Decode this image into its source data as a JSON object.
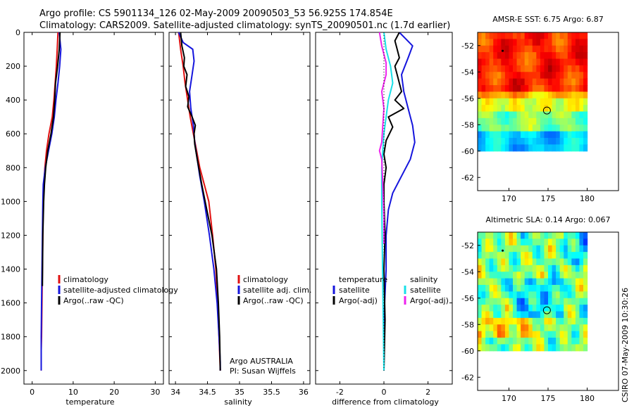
{
  "header": {
    "line1": "Argo profile: CS 5901134_126 02-May-2009 20090503_53 56.925S 174.854E",
    "line2": "Climatology: CARS2009. Satellite-adjusted climatology: synTS_20090501.nc (1.7d earlier)"
  },
  "side_label": "CSIRO 07-May-2009 10:30:26",
  "colors": {
    "red": "#e01010",
    "blue": "#1515dd",
    "black": "#000000",
    "cyan": "#18e0e8",
    "magenta": "#ee22ee"
  },
  "chart_data": [
    {
      "type": "line",
      "name": "temperature",
      "xlabel": "temperature",
      "xlim": [
        -2,
        32
      ],
      "ylim": [
        2080,
        0
      ],
      "xticks": [
        "0",
        "10",
        "20",
        "30"
      ],
      "xtickvals": [
        0,
        10,
        20,
        30
      ],
      "yticks": [
        "0",
        "200",
        "400",
        "600",
        "800",
        "1000",
        "1200",
        "1400",
        "1600",
        "1800",
        "2000"
      ],
      "ytickvals": [
        0,
        200,
        400,
        600,
        800,
        1000,
        1200,
        1400,
        1600,
        1800,
        2000
      ],
      "legend": [
        "climatology",
        "satellite-adjusted climatology",
        "Argo(..raw -QC)"
      ],
      "series": [
        {
          "name": "climatology",
          "color": "red",
          "x": [
            6.3,
            6.1,
            5.9,
            5.6,
            5.3,
            4.9,
            4.1,
            3.5,
            3.1,
            2.9,
            2.7,
            2.6,
            2.5,
            2.4,
            2.3,
            2.2,
            2.2
          ],
          "y": [
            0,
            100,
            200,
            300,
            400,
            500,
            600,
            700,
            800,
            900,
            1000,
            1200,
            1400,
            1600,
            1800,
            1880,
            2000
          ]
        },
        {
          "name": "satellite-adjusted climatology",
          "color": "blue",
          "x": [
            6.6,
            6.8,
            7.0,
            6.7,
            6.3,
            5.8,
            5.4,
            4.8,
            4.0,
            3.2,
            2.7,
            2.6,
            2.5,
            2.4,
            2.3,
            2.2,
            2.2
          ],
          "y": [
            0,
            50,
            100,
            200,
            300,
            400,
            500,
            600,
            700,
            800,
            900,
            1000,
            1200,
            1400,
            1600,
            1800,
            2000
          ]
        },
        {
          "name": "Argo(..raw -QC)",
          "color": "black",
          "x": [
            6.8,
            6.6,
            6.2,
            5.7,
            5.5,
            5.2,
            4.6,
            3.8,
            3.3,
            3.0,
            2.8,
            2.6,
            2.5
          ],
          "y": [
            0,
            100,
            200,
            300,
            400,
            500,
            600,
            700,
            800,
            900,
            1000,
            1200,
            1500
          ]
        }
      ]
    },
    {
      "type": "line",
      "name": "salinity",
      "xlabel": "salinity",
      "xlim": [
        33.9,
        36.1
      ],
      "ylim": [
        2080,
        0
      ],
      "xticks": [
        "34",
        "34.5",
        "35",
        "35.5",
        "36"
      ],
      "xtickvals": [
        34,
        34.5,
        35,
        35.5,
        36
      ],
      "legend": [
        "climatology",
        "satellite adj. clim.",
        "Argo(..raw -QC)"
      ],
      "annotation": [
        "Argo AUSTRALIA",
        "PI: Susan Wijffels"
      ],
      "series": [
        {
          "name": "climatology",
          "color": "red",
          "x": [
            34.05,
            34.08,
            34.12,
            34.15,
            34.19,
            34.23,
            34.28,
            34.33,
            34.38,
            34.45,
            34.52,
            34.58,
            34.63,
            34.66,
            34.68,
            34.7
          ],
          "y": [
            0,
            100,
            200,
            300,
            400,
            500,
            600,
            700,
            800,
            900,
            1000,
            1200,
            1400,
            1600,
            1800,
            2000
          ]
        },
        {
          "name": "satellite adj. clim.",
          "color": "blue",
          "x": [
            34.05,
            34.12,
            34.27,
            34.29,
            34.26,
            34.22,
            34.24,
            34.28,
            34.3,
            34.34,
            34.38,
            34.45,
            34.53,
            34.6,
            34.65,
            34.68,
            34.7,
            34.7
          ],
          "y": [
            0,
            60,
            100,
            170,
            250,
            350,
            450,
            550,
            650,
            750,
            850,
            1000,
            1200,
            1400,
            1600,
            1800,
            1950,
            2000
          ]
        },
        {
          "name": "Argo(..raw -QC)",
          "color": "black",
          "x": [
            34.08,
            34.1,
            34.14,
            34.13,
            34.18,
            34.16,
            34.21,
            34.19,
            34.26,
            34.31,
            34.29,
            34.3,
            34.34,
            34.41,
            34.49,
            34.57,
            34.64,
            34.67,
            34.69,
            34.7
          ],
          "y": [
            0,
            80,
            150,
            200,
            250,
            320,
            380,
            440,
            500,
            550,
            600,
            660,
            750,
            900,
            1050,
            1200,
            1400,
            1600,
            1800,
            2000
          ]
        }
      ]
    },
    {
      "type": "line",
      "name": "difference",
      "xlabel": "difference from climatology",
      "xlim": [
        -3.1,
        3.1
      ],
      "ylim": [
        2080,
        0
      ],
      "xticks": [
        "-2",
        "0",
        "2"
      ],
      "xtickvals": [
        -2,
        0,
        2
      ],
      "legend_left": [
        "temperature",
        "satellite",
        "Argo(-adj)"
      ],
      "legend_right": [
        "salinity",
        "satellite",
        "Argo(-adj)"
      ],
      "series": [
        {
          "name": "temperature satellite",
          "color": "blue",
          "x": [
            0.7,
            1.0,
            1.3,
            1.1,
            0.8,
            0.9,
            1.1,
            1.3,
            1.4,
            1.2,
            0.8,
            0.4,
            0.2,
            0.1,
            0.1,
            0.0,
            0.0
          ],
          "y": [
            0,
            40,
            80,
            150,
            250,
            350,
            450,
            550,
            650,
            750,
            850,
            950,
            1050,
            1200,
            1400,
            1700,
            2000
          ]
        },
        {
          "name": "temperature Argo(-adj)",
          "color": "black",
          "x": [
            0.7,
            0.5,
            0.6,
            0.7,
            0.5,
            0.6,
            0.7,
            0.8,
            0.5,
            0.9,
            0.2,
            0.4,
            0.1,
            0.0,
            0.1,
            0.0,
            0.0,
            0.05,
            0.0,
            0.05,
            0.0
          ],
          "y": [
            0,
            50,
            100,
            150,
            200,
            250,
            300,
            350,
            400,
            450,
            500,
            560,
            640,
            720,
            800,
            900,
            1000,
            1200,
            1400,
            1700,
            2000
          ]
        },
        {
          "name": "salinity satellite",
          "color": "cyan",
          "x": [
            0.0,
            0.1,
            0.3,
            0.4,
            0.2,
            0.1,
            0.0,
            -0.05,
            -0.1,
            -0.1,
            -0.05,
            0.0
          ],
          "y": [
            0,
            100,
            200,
            300,
            400,
            500,
            600,
            700,
            800,
            1000,
            1500,
            2000
          ]
        },
        {
          "name": "salinity Argo(-adj)",
          "color": "magenta",
          "x": [
            -0.2,
            -0.1,
            0.1,
            0.1,
            -0.1,
            0.0,
            -0.05,
            -0.1,
            -0.2,
            -0.1,
            -0.05,
            0.0,
            0.0
          ],
          "y": [
            0,
            80,
            180,
            250,
            350,
            450,
            550,
            650,
            700,
            750,
            900,
            1100,
            1250
          ]
        },
        {
          "name": "zero reference",
          "color": "black",
          "style": "dotted",
          "x": [
            0,
            0
          ],
          "y": [
            0,
            2000
          ]
        }
      ]
    },
    {
      "type": "heatmap",
      "name": "sst",
      "title": "AMSR-E SST: 6.75 Argo: 6.87",
      "xlim": [
        166,
        184
      ],
      "ylim": [
        -63,
        -51
      ],
      "xticks": [
        "170",
        "175",
        "180"
      ],
      "xtickvals": [
        170,
        175,
        180
      ],
      "yticks": [
        "-52",
        "-54",
        "-56",
        "-58",
        "-60",
        "-62"
      ],
      "ytickvals": [
        -52,
        -54,
        -56,
        -58,
        -60,
        -62
      ],
      "grid_extent": {
        "lon": [
          166,
          180
        ],
        "lat": [
          -60,
          -51
        ]
      },
      "marker": {
        "lon": 174.854,
        "lat": -56.925
      }
    },
    {
      "type": "heatmap",
      "name": "sla",
      "title": "Altimetric SLA: 0.14 Argo: 0.067",
      "xlim": [
        166,
        184
      ],
      "ylim": [
        -63,
        -51
      ],
      "xticks": [
        "170",
        "175",
        "180"
      ],
      "xtickvals": [
        170,
        175,
        180
      ],
      "yticks": [
        "-52",
        "-54",
        "-56",
        "-58",
        "-60",
        "-62"
      ],
      "ytickvals": [
        -52,
        -54,
        -56,
        -58,
        -60,
        -62
      ],
      "grid_extent": {
        "lon": [
          166,
          180
        ],
        "lat": [
          -60,
          -51
        ]
      },
      "marker": {
        "lon": 174.854,
        "lat": -56.925
      }
    }
  ]
}
